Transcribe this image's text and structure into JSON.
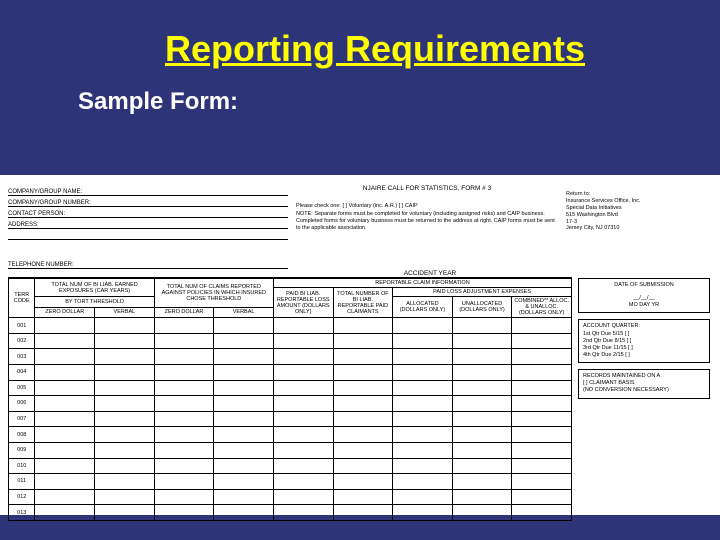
{
  "slide": {
    "title": "Reporting Requirements",
    "subtitle": "Sample Form:"
  },
  "form": {
    "title": "NJAIRE CALL FOR STATISTICS, FORM # 3",
    "company_fields": [
      "COMPANY/GROUP NAME:",
      "COMPANY/GROUP NUMBER:",
      "CONTACT PERSON:",
      "ADDRESS:",
      "",
      "TELEPHONE NUMBER:"
    ],
    "center_check": "Please check one: [   ] Voluntary (inc. A.R.)    [   ] CAIP",
    "center_note": "NOTE: Separate forms must be completed for voluntary (including assigned risks) and CAIP business. Completed forms for voluntary business must be returned to the address at right. CAIP forms must be sent to the applicable association.",
    "return_lines": [
      "Return to:",
      "Insurance Services Office, Inc.",
      "Special Data Initiatives",
      "515 Washington Blvd",
      "17-3",
      "Jersey City, NJ 07310"
    ],
    "accident_year_label": "ACCIDENT YEAR",
    "headers": {
      "grp1": "TOTAL NUM OF BI LIAB. EARNED EXPOSURES (CAR YEARS)",
      "grp1_sub": "BY TORT THRESHOLD",
      "grp2": "TOTAL NUM OF CLAIMS REPORTED AGAINST POLICIES IN WHICH INSURED CHOSE THRESHOLD",
      "grp3": "REPORTABLE CLAIM INFORMATION",
      "grp3a": "PAID BI LIAB. REPORTABLE LOSS AMOUNT (DOLLARS ONLY)",
      "grp3b": "TOTAL NUMBER OF BI LIAB. REPORTABLE PAID CLAIMANTS",
      "grp3c": "PAID LOSS ADJUSTMENT EXPENSES",
      "grp3c1": "ALLOCATED (DOLLARS ONLY)",
      "grp3c2": "UNALLOCATED (DOLLARS ONLY)",
      "grp3c3": "COMBINED** ALLOC. & UNALLOC. (DOLLARS ONLY)",
      "terr": "TERR CODE",
      "zero": "ZERO DOLLAR",
      "verbal": "VERBAL"
    },
    "rows": [
      "001",
      "002",
      "003",
      "004",
      "005",
      "006",
      "007",
      "008",
      "009",
      "010",
      "011",
      "012",
      "013"
    ],
    "side": {
      "submission_title": "DATE OF SUBMISSION",
      "submission_fmt": "MO   DAY   YR",
      "account_title": "ACCOUNT QUARTER:",
      "account_lines": [
        "1st Qtr Due 5/15   [   ]",
        "2nd Qtr Due 8/15   [   ]",
        "3rd Qtr Due 11/15  [   ]",
        "4th Qtr Due 2/15   [   ]"
      ],
      "records_title": "RECORDS MAINTAINED ON A",
      "records_lines": [
        "[   ] CLAIMANT BASIS",
        "(NO CONVERSION NECESSARY)"
      ]
    }
  },
  "colors": {
    "background": "#2d3478",
    "title": "#ffff00",
    "subtitle": "#ffffff",
    "form_bg": "#ffffff",
    "ink": "#000000"
  }
}
